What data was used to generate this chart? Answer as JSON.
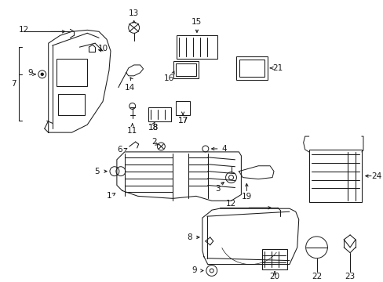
{
  "background_color": "#ffffff",
  "figsize": [
    4.89,
    3.6
  ],
  "dpi": 100,
  "line_color": "#1a1a1a",
  "label_fontsize": 7.5,
  "lw": 0.75
}
